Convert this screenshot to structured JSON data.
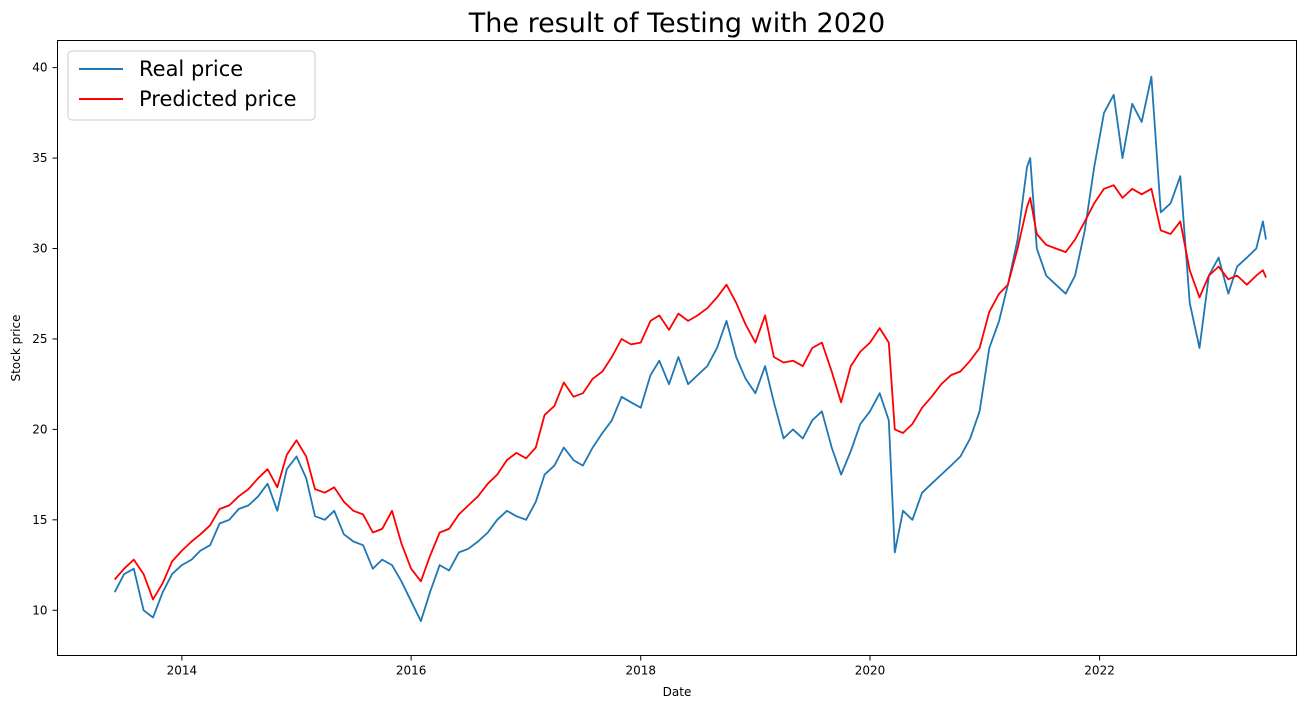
{
  "chart_data": {
    "type": "line",
    "title": "The result of Testing with 2020",
    "xlabel": "Date",
    "ylabel": "Stock price",
    "xlim": [
      "2012-12-01",
      "2023-09-20"
    ],
    "ylim": [
      7.5,
      41.5
    ],
    "x_ticks": [
      "2014",
      "2016",
      "2018",
      "2020",
      "2022"
    ],
    "y_ticks": [
      10,
      15,
      20,
      25,
      30,
      35,
      40
    ],
    "grid": false,
    "legend": "top-left",
    "series": [
      {
        "name": "Real price",
        "color": "#1f77b4",
        "points": [
          [
            "2013-06-01",
            11.0
          ],
          [
            "2013-07-01",
            12.0
          ],
          [
            "2013-08-01",
            12.3
          ],
          [
            "2013-09-01",
            10.0
          ],
          [
            "2013-10-01",
            9.6
          ],
          [
            "2013-11-01",
            11.0
          ],
          [
            "2013-12-01",
            12.0
          ],
          [
            "2014-01-01",
            12.5
          ],
          [
            "2014-02-01",
            12.8
          ],
          [
            "2014-03-01",
            13.3
          ],
          [
            "2014-04-01",
            13.6
          ],
          [
            "2014-05-01",
            14.8
          ],
          [
            "2014-06-01",
            15.0
          ],
          [
            "2014-07-01",
            15.6
          ],
          [
            "2014-08-01",
            15.8
          ],
          [
            "2014-09-01",
            16.3
          ],
          [
            "2014-10-01",
            17.0
          ],
          [
            "2014-11-01",
            15.5
          ],
          [
            "2014-12-01",
            17.8
          ],
          [
            "2015-01-01",
            18.5
          ],
          [
            "2015-02-01",
            17.3
          ],
          [
            "2015-03-01",
            15.2
          ],
          [
            "2015-04-01",
            15.0
          ],
          [
            "2015-05-01",
            15.5
          ],
          [
            "2015-06-01",
            14.2
          ],
          [
            "2015-07-01",
            13.8
          ],
          [
            "2015-08-01",
            13.6
          ],
          [
            "2015-09-01",
            12.3
          ],
          [
            "2015-10-01",
            12.8
          ],
          [
            "2015-11-01",
            12.5
          ],
          [
            "2015-12-01",
            11.6
          ],
          [
            "2016-01-01",
            10.5
          ],
          [
            "2016-02-01",
            9.4
          ],
          [
            "2016-03-01",
            11.0
          ],
          [
            "2016-04-01",
            12.5
          ],
          [
            "2016-05-01",
            12.2
          ],
          [
            "2016-06-01",
            13.2
          ],
          [
            "2016-07-01",
            13.4
          ],
          [
            "2016-08-01",
            13.8
          ],
          [
            "2016-09-01",
            14.3
          ],
          [
            "2016-10-01",
            15.0
          ],
          [
            "2016-11-01",
            15.5
          ],
          [
            "2016-12-01",
            15.2
          ],
          [
            "2017-01-01",
            15.0
          ],
          [
            "2017-02-01",
            16.0
          ],
          [
            "2017-03-01",
            17.5
          ],
          [
            "2017-04-01",
            18.0
          ],
          [
            "2017-05-01",
            19.0
          ],
          [
            "2017-06-01",
            18.3
          ],
          [
            "2017-07-01",
            18.0
          ],
          [
            "2017-08-01",
            19.0
          ],
          [
            "2017-09-01",
            19.8
          ],
          [
            "2017-10-01",
            20.5
          ],
          [
            "2017-11-01",
            21.8
          ],
          [
            "2017-12-01",
            21.5
          ],
          [
            "2018-01-01",
            21.2
          ],
          [
            "2018-02-01",
            23.0
          ],
          [
            "2018-03-01",
            23.8
          ],
          [
            "2018-04-01",
            22.5
          ],
          [
            "2018-05-01",
            24.0
          ],
          [
            "2018-06-01",
            22.5
          ],
          [
            "2018-07-01",
            23.0
          ],
          [
            "2018-08-01",
            23.5
          ],
          [
            "2018-09-01",
            24.5
          ],
          [
            "2018-10-01",
            26.0
          ],
          [
            "2018-11-01",
            24.0
          ],
          [
            "2018-12-01",
            22.8
          ],
          [
            "2019-01-01",
            22.0
          ],
          [
            "2019-02-01",
            23.5
          ],
          [
            "2019-03-01",
            21.5
          ],
          [
            "2019-04-01",
            19.5
          ],
          [
            "2019-05-01",
            20.0
          ],
          [
            "2019-06-01",
            19.5
          ],
          [
            "2019-07-01",
            20.5
          ],
          [
            "2019-08-01",
            21.0
          ],
          [
            "2019-09-01",
            19.0
          ],
          [
            "2019-10-01",
            17.5
          ],
          [
            "2019-11-01",
            18.8
          ],
          [
            "2019-12-01",
            20.3
          ],
          [
            "2020-01-01",
            21.0
          ],
          [
            "2020-02-01",
            22.0
          ],
          [
            "2020-03-01",
            20.5
          ],
          [
            "2020-03-20",
            13.2
          ],
          [
            "2020-04-15",
            15.5
          ],
          [
            "2020-05-15",
            15.0
          ],
          [
            "2020-06-15",
            16.5
          ],
          [
            "2020-07-15",
            17.0
          ],
          [
            "2020-08-15",
            17.5
          ],
          [
            "2020-09-15",
            18.0
          ],
          [
            "2020-10-15",
            18.5
          ],
          [
            "2020-11-15",
            19.5
          ],
          [
            "2020-12-15",
            21.0
          ],
          [
            "2021-01-15",
            24.5
          ],
          [
            "2021-02-15",
            26.0
          ],
          [
            "2021-03-15",
            28.0
          ],
          [
            "2021-04-15",
            30.5
          ],
          [
            "2021-05-15",
            34.5
          ],
          [
            "2021-05-25",
            35.0
          ],
          [
            "2021-06-15",
            30.0
          ],
          [
            "2021-07-15",
            28.5
          ],
          [
            "2021-08-15",
            28.0
          ],
          [
            "2021-09-15",
            27.5
          ],
          [
            "2021-10-15",
            28.5
          ],
          [
            "2021-11-15",
            31.0
          ],
          [
            "2021-12-15",
            34.5
          ],
          [
            "2022-01-15",
            37.5
          ],
          [
            "2022-02-15",
            38.5
          ],
          [
            "2022-03-15",
            35.0
          ],
          [
            "2022-04-15",
            38.0
          ],
          [
            "2022-05-15",
            37.0
          ],
          [
            "2022-06-15",
            39.5
          ],
          [
            "2022-07-15",
            32.0
          ],
          [
            "2022-08-15",
            32.5
          ],
          [
            "2022-09-15",
            34.0
          ],
          [
            "2022-10-15",
            27.0
          ],
          [
            "2022-11-15",
            24.5
          ],
          [
            "2022-12-15",
            28.5
          ],
          [
            "2023-01-15",
            29.5
          ],
          [
            "2023-02-15",
            27.5
          ],
          [
            "2023-03-15",
            29.0
          ],
          [
            "2023-04-15",
            29.5
          ],
          [
            "2023-05-15",
            30.0
          ],
          [
            "2023-06-05",
            31.5
          ],
          [
            "2023-06-15",
            30.5
          ]
        ]
      },
      {
        "name": "Predicted price",
        "color": "#ff0000",
        "points": [
          [
            "2013-06-01",
            11.7
          ],
          [
            "2013-07-01",
            12.3
          ],
          [
            "2013-08-01",
            12.8
          ],
          [
            "2013-09-01",
            12.0
          ],
          [
            "2013-10-01",
            10.6
          ],
          [
            "2013-11-01",
            11.5
          ],
          [
            "2013-12-01",
            12.7
          ],
          [
            "2014-01-01",
            13.3
          ],
          [
            "2014-02-01",
            13.8
          ],
          [
            "2014-03-01",
            14.2
          ],
          [
            "2014-04-01",
            14.7
          ],
          [
            "2014-05-01",
            15.6
          ],
          [
            "2014-06-01",
            15.8
          ],
          [
            "2014-07-01",
            16.3
          ],
          [
            "2014-08-01",
            16.7
          ],
          [
            "2014-09-01",
            17.3
          ],
          [
            "2014-10-01",
            17.8
          ],
          [
            "2014-11-01",
            16.8
          ],
          [
            "2014-12-01",
            18.6
          ],
          [
            "2015-01-01",
            19.4
          ],
          [
            "2015-02-01",
            18.5
          ],
          [
            "2015-03-01",
            16.7
          ],
          [
            "2015-04-01",
            16.5
          ],
          [
            "2015-05-01",
            16.8
          ],
          [
            "2015-06-01",
            16.0
          ],
          [
            "2015-07-01",
            15.5
          ],
          [
            "2015-08-01",
            15.3
          ],
          [
            "2015-09-01",
            14.3
          ],
          [
            "2015-10-01",
            14.5
          ],
          [
            "2015-11-01",
            15.5
          ],
          [
            "2015-12-01",
            13.7
          ],
          [
            "2016-01-01",
            12.3
          ],
          [
            "2016-02-01",
            11.6
          ],
          [
            "2016-03-01",
            13.0
          ],
          [
            "2016-04-01",
            14.3
          ],
          [
            "2016-05-01",
            14.5
          ],
          [
            "2016-06-01",
            15.3
          ],
          [
            "2016-07-01",
            15.8
          ],
          [
            "2016-08-01",
            16.3
          ],
          [
            "2016-09-01",
            17.0
          ],
          [
            "2016-10-01",
            17.5
          ],
          [
            "2016-11-01",
            18.3
          ],
          [
            "2016-12-01",
            18.7
          ],
          [
            "2017-01-01",
            18.4
          ],
          [
            "2017-02-01",
            19.0
          ],
          [
            "2017-03-01",
            20.8
          ],
          [
            "2017-04-01",
            21.3
          ],
          [
            "2017-05-01",
            22.6
          ],
          [
            "2017-06-01",
            21.8
          ],
          [
            "2017-07-01",
            22.0
          ],
          [
            "2017-08-01",
            22.8
          ],
          [
            "2017-09-01",
            23.2
          ],
          [
            "2017-10-01",
            24.0
          ],
          [
            "2017-11-01",
            25.0
          ],
          [
            "2017-12-01",
            24.7
          ],
          [
            "2018-01-01",
            24.8
          ],
          [
            "2018-02-01",
            26.0
          ],
          [
            "2018-03-01",
            26.3
          ],
          [
            "2018-04-01",
            25.5
          ],
          [
            "2018-05-01",
            26.4
          ],
          [
            "2018-06-01",
            26.0
          ],
          [
            "2018-07-01",
            26.3
          ],
          [
            "2018-08-01",
            26.7
          ],
          [
            "2018-09-01",
            27.3
          ],
          [
            "2018-10-01",
            28.0
          ],
          [
            "2018-11-01",
            27.0
          ],
          [
            "2018-12-01",
            25.8
          ],
          [
            "2019-01-01",
            24.8
          ],
          [
            "2019-02-01",
            26.3
          ],
          [
            "2019-03-01",
            24.0
          ],
          [
            "2019-04-01",
            23.7
          ],
          [
            "2019-05-01",
            23.8
          ],
          [
            "2019-06-01",
            23.5
          ],
          [
            "2019-07-01",
            24.5
          ],
          [
            "2019-08-01",
            24.8
          ],
          [
            "2019-09-01",
            23.2
          ],
          [
            "2019-10-01",
            21.5
          ],
          [
            "2019-11-01",
            23.5
          ],
          [
            "2019-12-01",
            24.3
          ],
          [
            "2020-01-01",
            24.8
          ],
          [
            "2020-02-01",
            25.6
          ],
          [
            "2020-03-01",
            24.8
          ],
          [
            "2020-03-20",
            20.0
          ],
          [
            "2020-04-15",
            19.8
          ],
          [
            "2020-05-15",
            20.3
          ],
          [
            "2020-06-15",
            21.2
          ],
          [
            "2020-07-15",
            21.8
          ],
          [
            "2020-08-15",
            22.5
          ],
          [
            "2020-09-15",
            23.0
          ],
          [
            "2020-10-15",
            23.2
          ],
          [
            "2020-11-15",
            23.8
          ],
          [
            "2020-12-15",
            24.5
          ],
          [
            "2021-01-15",
            26.5
          ],
          [
            "2021-02-15",
            27.5
          ],
          [
            "2021-03-15",
            28.0
          ],
          [
            "2021-04-15",
            30.0
          ],
          [
            "2021-05-15",
            32.3
          ],
          [
            "2021-05-25",
            32.8
          ],
          [
            "2021-06-15",
            30.8
          ],
          [
            "2021-07-15",
            30.2
          ],
          [
            "2021-08-15",
            30.0
          ],
          [
            "2021-09-15",
            29.8
          ],
          [
            "2021-10-15",
            30.5
          ],
          [
            "2021-11-15",
            31.5
          ],
          [
            "2021-12-15",
            32.5
          ],
          [
            "2022-01-15",
            33.3
          ],
          [
            "2022-02-15",
            33.5
          ],
          [
            "2022-03-15",
            32.8
          ],
          [
            "2022-04-15",
            33.3
          ],
          [
            "2022-05-15",
            33.0
          ],
          [
            "2022-06-15",
            33.3
          ],
          [
            "2022-07-15",
            31.0
          ],
          [
            "2022-08-15",
            30.8
          ],
          [
            "2022-09-15",
            31.5
          ],
          [
            "2022-10-15",
            28.8
          ],
          [
            "2022-11-15",
            27.3
          ],
          [
            "2022-12-15",
            28.5
          ],
          [
            "2023-01-15",
            29.0
          ],
          [
            "2023-02-15",
            28.3
          ],
          [
            "2023-03-15",
            28.5
          ],
          [
            "2023-04-15",
            28.0
          ],
          [
            "2023-05-15",
            28.5
          ],
          [
            "2023-06-05",
            28.8
          ],
          [
            "2023-06-15",
            28.4
          ]
        ]
      }
    ]
  }
}
